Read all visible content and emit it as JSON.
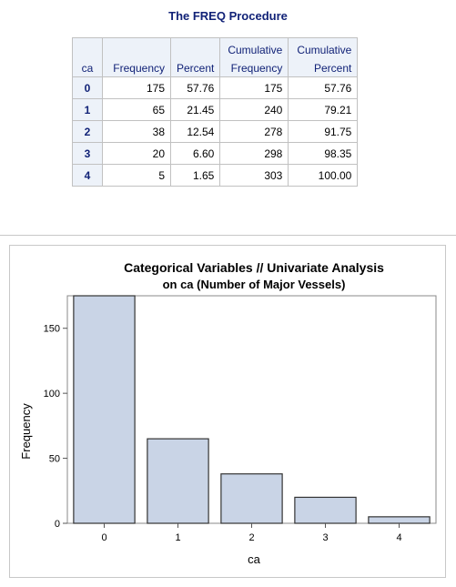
{
  "procedure_title": "The FREQ Procedure",
  "table": {
    "headers": [
      {
        "line1": "",
        "line2": "ca"
      },
      {
        "line1": "",
        "line2": "Frequency"
      },
      {
        "line1": "",
        "line2": "Percent"
      },
      {
        "line1": "Cumulative",
        "line2": "Frequency"
      },
      {
        "line1": "Cumulative",
        "line2": "Percent"
      }
    ],
    "rows": [
      {
        "ca": "0",
        "frequency": "175",
        "percent": "57.76",
        "cum_frequency": "175",
        "cum_percent": "57.76"
      },
      {
        "ca": "1",
        "frequency": "65",
        "percent": "21.45",
        "cum_frequency": "240",
        "cum_percent": "79.21"
      },
      {
        "ca": "2",
        "frequency": "38",
        "percent": "12.54",
        "cum_frequency": "278",
        "cum_percent": "91.75"
      },
      {
        "ca": "3",
        "frequency": "20",
        "percent": "6.60",
        "cum_frequency": "298",
        "cum_percent": "98.35"
      },
      {
        "ca": "4",
        "frequency": "5",
        "percent": "1.65",
        "cum_frequency": "303",
        "cum_percent": "100.00"
      }
    ]
  },
  "chart_data": {
    "type": "bar",
    "title": "Categorical Variables // Univariate Analysis",
    "subtitle": "on ca (Number of Major Vessels)",
    "categories": [
      "0",
      "1",
      "2",
      "3",
      "4"
    ],
    "values": [
      175,
      65,
      38,
      20,
      5
    ],
    "xlabel": "ca",
    "ylabel": "Frequency",
    "yticks": [
      0,
      50,
      100,
      150
    ],
    "ylim": [
      0,
      175
    ],
    "bar_fill": "#c9d4e6",
    "bar_stroke": "#333333",
    "grid": false
  }
}
